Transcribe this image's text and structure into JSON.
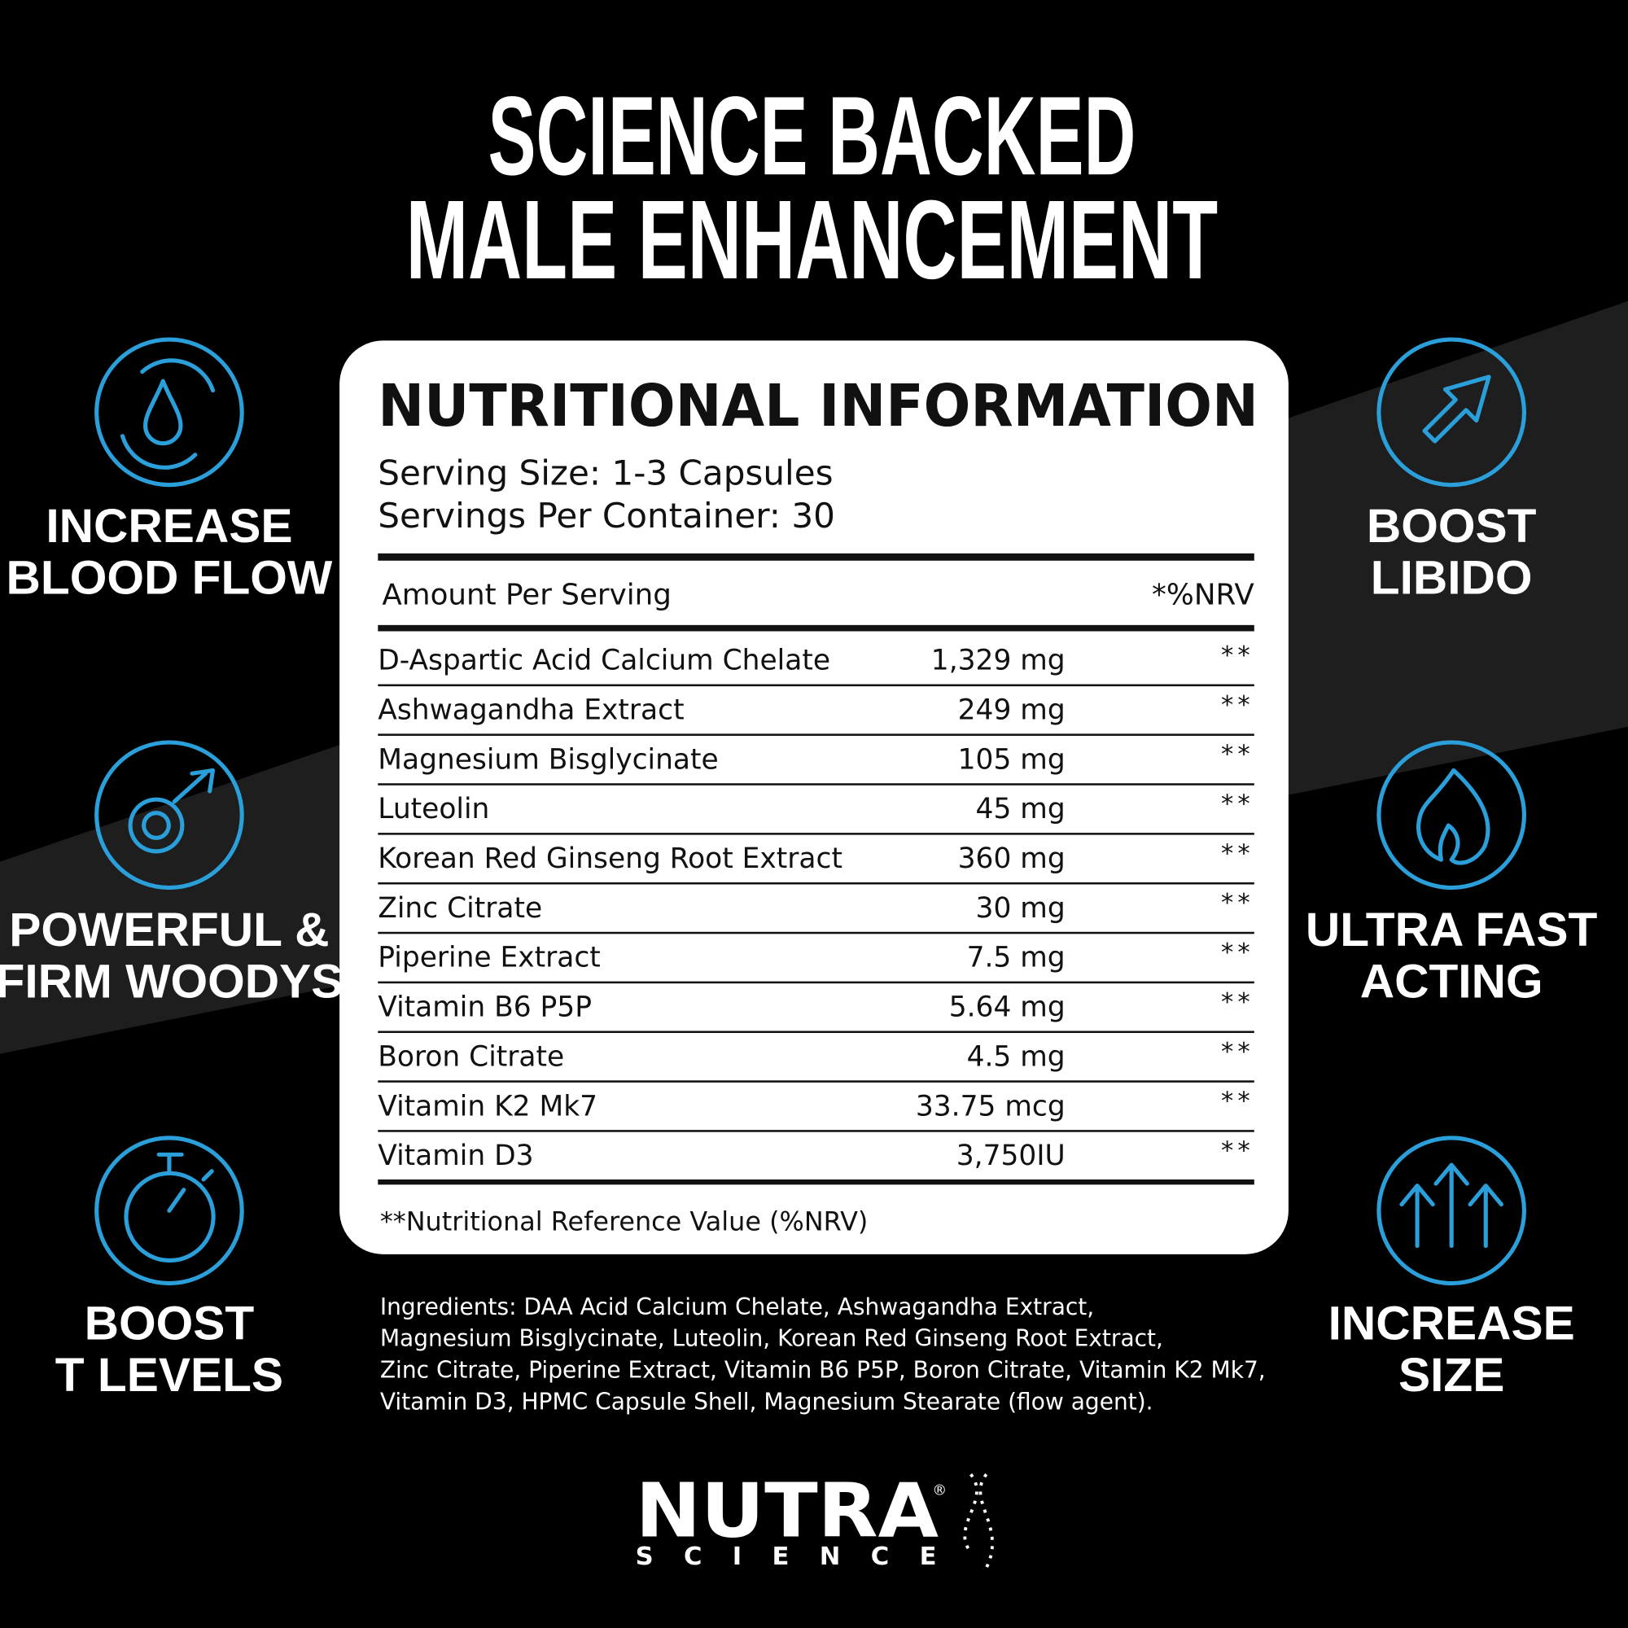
{
  "header": {
    "title": [
      "SCIENCE BACKED",
      "MALE ENHANCEMENT"
    ]
  },
  "features": {
    "left": [
      [
        "INCREASE",
        "BLOOD FLOW"
      ],
      [
        "POWERFUL &",
        "FIRM WOODYS"
      ],
      [
        "BOOST",
        "T LEVELS"
      ]
    ],
    "right": [
      [
        "BOOST",
        "LIBIDO"
      ],
      [
        "ULTRA FAST",
        "ACTING"
      ],
      [
        "INCREASE",
        "SIZE"
      ]
    ]
  },
  "panel": {
    "title": "NUTRITIONAL INFORMATION",
    "serving_size": "Serving Size: 1-3 Capsules",
    "servings_per_container": "Servings Per Container: 30",
    "table": {
      "header": [
        "Amount Per Serving",
        "*%NRV"
      ],
      "rows": [
        [
          "D-Aspartic Acid Calcium Chelate",
          "1,329 mg",
          "**"
        ],
        [
          "Ashwagandha Extract",
          "249 mg",
          "**"
        ],
        [
          "Magnesium Bisglycinate",
          "105 mg",
          "**"
        ],
        [
          "Luteolin",
          "45 mg",
          "**"
        ],
        [
          "Korean Red Ginseng Root Extract",
          "360 mg",
          "**"
        ],
        [
          "Zinc Citrate",
          "30 mg",
          "**"
        ],
        [
          "Piperine Extract",
          "7.5 mg",
          "**"
        ],
        [
          "Vitamin B6 P5P",
          "5.64 mg",
          "**"
        ],
        [
          "Boron Citrate",
          "4.5 mg",
          "**"
        ],
        [
          "Vitamin K2 Mk7",
          "33.75 mcg",
          "**"
        ],
        [
          "Vitamin D3",
          "3,750IU",
          "**"
        ]
      ]
    },
    "footnote": "**Nutritional Reference Value (%NRV)"
  },
  "ingredients": [
    "Ingredients: DAA Acid Calcium Chelate, Ashwagandha Extract,",
    "Magnesium Bisglycinate, Luteolin, Korean Red Ginseng Root Extract,",
    "Zinc Citrate, Piperine Extract, Vitamin B6 P5P, Boron Citrate, Vitamin K2 Mk7,",
    "Vitamin D3, HPMC Capsule Shell, Magnesium Stearate (flow agent)."
  ],
  "brand": {
    "name": "NUTRA",
    "mark": "®",
    "sub": "SCIENCE"
  }
}
